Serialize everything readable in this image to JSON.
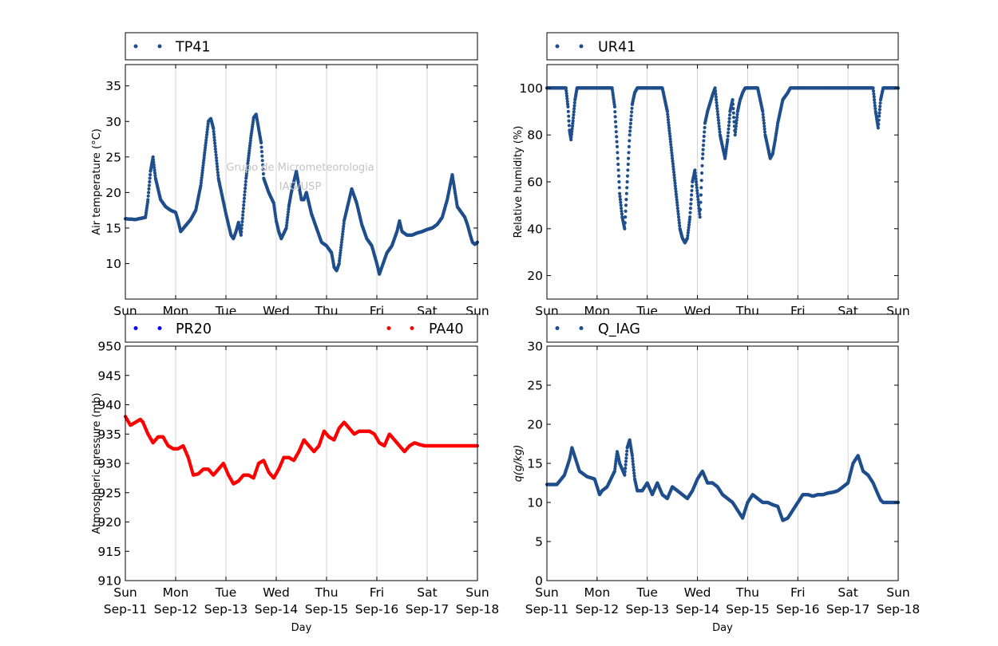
{
  "watermark": [
    "Grupo de Micrometeorologia",
    "IAG/USP"
  ],
  "chart_data": [
    {
      "type": "scatter",
      "xlabel": "Day",
      "ylabel": "Air temperature (°C)",
      "ylim": [
        5,
        38
      ],
      "yticks": [
        10,
        15,
        20,
        25,
        30,
        35
      ],
      "xlim_days": [
        0,
        7
      ],
      "x_tick_labels": [
        [
          "Sun",
          "Sep-11"
        ],
        [
          "Mon",
          "Sep-12"
        ],
        [
          "Tue",
          "Sep-13"
        ],
        [
          "Wed",
          "Sep-14"
        ],
        [
          "Thu",
          "Sep-15"
        ],
        [
          "Fri",
          "Sep-16"
        ],
        [
          "Sat",
          "Sep-17"
        ],
        [
          "Sun",
          "Sep-18"
        ]
      ],
      "grid": "vertical",
      "legend": "top",
      "series": [
        {
          "name": "TP41",
          "color": "#1f4e8c",
          "x": [
            0,
            0.2,
            0.4,
            0.45,
            0.5,
            0.55,
            0.6,
            0.7,
            0.8,
            0.9,
            1,
            1.05,
            1.1,
            1.3,
            1.4,
            1.5,
            1.6,
            1.65,
            1.7,
            1.75,
            1.85,
            2,
            2.05,
            2.1,
            2.15,
            2.2,
            2.25,
            2.3,
            2.4,
            2.5,
            2.55,
            2.6,
            2.65,
            2.7,
            2.75,
            2.85,
            2.95,
            3,
            3.05,
            3.1,
            3.2,
            3.25,
            3.3,
            3.4,
            3.45,
            3.5,
            3.55,
            3.6,
            3.7,
            3.8,
            3.9,
            4,
            4.1,
            4.15,
            4.2,
            4.25,
            4.3,
            4.35,
            4.4,
            4.5,
            4.6,
            4.7,
            4.8,
            4.9,
            5,
            5.05,
            5.1,
            5.2,
            5.3,
            5.4,
            5.45,
            5.5,
            5.6,
            5.7,
            5.8,
            5.9,
            6,
            6.1,
            6.2,
            6.3,
            6.4,
            6.5,
            6.6,
            6.7,
            6.75,
            6.8,
            6.85,
            6.9,
            6.95,
            7
          ],
          "y": [
            16.3,
            16.2,
            16.5,
            19,
            23,
            25,
            22,
            19,
            18,
            17.5,
            17.2,
            16,
            14.5,
            16.2,
            17.5,
            21,
            27,
            30,
            30.4,
            29,
            22,
            17,
            15.5,
            14,
            13.5,
            14.5,
            15.8,
            14,
            22,
            28,
            30.5,
            31,
            29,
            27,
            22,
            20,
            18.5,
            16,
            14.5,
            13.5,
            15,
            18,
            20,
            23,
            21,
            19,
            19,
            20,
            17,
            15,
            13,
            12.5,
            11.5,
            9.5,
            9,
            10,
            13,
            16,
            17.5,
            20.5,
            18.5,
            15.5,
            13.5,
            12.5,
            10,
            8.5,
            9.5,
            11.5,
            12.5,
            14.5,
            16,
            14.5,
            14,
            14,
            14.3,
            14.5,
            14.8,
            15,
            15.5,
            16.5,
            19,
            22.5,
            18,
            17,
            16.5,
            15.5,
            14.2,
            13,
            12.7,
            13
          ]
        }
      ]
    },
    {
      "type": "scatter",
      "xlabel": "Day",
      "ylabel": "Relative humidity (%)",
      "ylim": [
        10,
        110
      ],
      "yticks": [
        20,
        40,
        60,
        80,
        100
      ],
      "xlim_days": [
        0,
        7
      ],
      "x_tick_labels": [
        [
          "Sun",
          "Sep-11"
        ],
        [
          "Mon",
          "Sep-12"
        ],
        [
          "Tue",
          "Sep-13"
        ],
        [
          "Wed",
          "Sep-14"
        ],
        [
          "Thu",
          "Sep-15"
        ],
        [
          "Fri",
          "Sep-16"
        ],
        [
          "Sat",
          "Sep-17"
        ],
        [
          "Sun",
          "Sep-18"
        ]
      ],
      "grid": "vertical",
      "legend": "top",
      "series": [
        {
          "name": "UR41",
          "color": "#1f4e8c",
          "x": [
            0,
            0.2,
            0.38,
            0.42,
            0.45,
            0.48,
            0.52,
            0.56,
            0.6,
            0.8,
            1,
            1.3,
            1.35,
            1.4,
            1.45,
            1.5,
            1.55,
            1.6,
            1.65,
            1.7,
            1.75,
            1.8,
            1.9,
            2,
            2.3,
            2.4,
            2.5,
            2.6,
            2.65,
            2.7,
            2.75,
            2.8,
            2.85,
            2.9,
            2.95,
            3,
            3.05,
            3.1,
            3.15,
            3.2,
            3.3,
            3.35,
            3.4,
            3.45,
            3.5,
            3.55,
            3.6,
            3.65,
            3.7,
            3.75,
            3.8,
            3.85,
            3.9,
            3.95,
            4,
            4.1,
            4.2,
            4.3,
            4.35,
            4.4,
            4.45,
            4.5,
            4.55,
            4.6,
            4.7,
            4.8,
            4.85,
            4.9,
            5,
            5.1,
            5.3,
            5.5,
            6,
            6.4,
            6.5,
            6.55,
            6.6,
            6.62,
            6.65,
            6.7,
            7
          ],
          "y": [
            100,
            100,
            100,
            92,
            82,
            78,
            86,
            95,
            100,
            100,
            100,
            100,
            92,
            75,
            55,
            45,
            40,
            60,
            80,
            93,
            98,
            100,
            100,
            100,
            100,
            90,
            70,
            50,
            40,
            36,
            34,
            36,
            45,
            60,
            65,
            55,
            45,
            70,
            85,
            90,
            97,
            100,
            90,
            80,
            75,
            70,
            78,
            90,
            95,
            80,
            90,
            95,
            98,
            100,
            100,
            100,
            100,
            90,
            80,
            75,
            70,
            72,
            78,
            85,
            95,
            98,
            100,
            100,
            100,
            100,
            100,
            100,
            100,
            100,
            100,
            90,
            83,
            88,
            95,
            100,
            100
          ]
        }
      ]
    },
    {
      "type": "scatter",
      "xlabel": "Day",
      "ylabel": "Atmospheric pressure (mb)",
      "ylim": [
        910,
        950
      ],
      "yticks": [
        910,
        915,
        920,
        925,
        930,
        935,
        940,
        945,
        950
      ],
      "xlim_days": [
        0,
        7
      ],
      "x_tick_labels": [
        [
          "Sun",
          "Sep-11"
        ],
        [
          "Mon",
          "Sep-12"
        ],
        [
          "Tue",
          "Sep-13"
        ],
        [
          "Wed",
          "Sep-14"
        ],
        [
          "Thu",
          "Sep-15"
        ],
        [
          "Fri",
          "Sep-16"
        ],
        [
          "Sat",
          "Sep-17"
        ],
        [
          "Sun",
          "Sep-18"
        ]
      ],
      "grid": "vertical",
      "legend": "top",
      "series": [
        {
          "name": "PR20",
          "color": "#0000ff",
          "x": [],
          "y": []
        },
        {
          "name": "PA40",
          "color": "#ff0000",
          "x": [
            0,
            0.1,
            0.2,
            0.3,
            0.35,
            0.45,
            0.55,
            0.65,
            0.75,
            0.85,
            0.95,
            1.05,
            1.15,
            1.25,
            1.35,
            1.45,
            1.55,
            1.65,
            1.75,
            1.85,
            1.95,
            2.05,
            2.15,
            2.25,
            2.35,
            2.45,
            2.55,
            2.65,
            2.75,
            2.85,
            2.95,
            3.05,
            3.15,
            3.25,
            3.35,
            3.45,
            3.55,
            3.65,
            3.75,
            3.85,
            3.95,
            4.05,
            4.15,
            4.25,
            4.35,
            4.45,
            4.55,
            4.65,
            4.75,
            4.85,
            4.95,
            5.05,
            5.15,
            5.25,
            5.35,
            5.45,
            5.55,
            5.65,
            5.75,
            5.85,
            5.95,
            6.05,
            6.15,
            6.25,
            6.35,
            6.45,
            6.55,
            6.65,
            6.75,
            6.85,
            6.95,
            7
          ],
          "y": [
            938,
            936.5,
            937,
            937.5,
            937,
            935,
            933.5,
            934.5,
            934.5,
            933,
            932.5,
            932.5,
            933,
            931,
            928,
            928.2,
            929,
            929,
            928,
            929,
            930,
            928,
            926.5,
            927,
            928,
            928,
            927.5,
            930,
            930.5,
            928.5,
            927.5,
            929,
            931,
            931,
            930.5,
            932,
            934,
            933,
            932,
            933,
            935.5,
            934.5,
            934,
            936,
            937,
            936,
            935,
            935.5,
            935.5,
            935.5,
            935,
            933.5,
            933,
            935,
            934,
            933,
            932,
            933,
            933.5,
            933.2,
            933,
            933,
            933,
            933,
            933,
            933,
            933,
            933,
            933,
            933,
            933,
            933
          ]
        }
      ]
    },
    {
      "type": "scatter",
      "xlabel": "Day",
      "ylabel": "q(g/kg)",
      "ylim": [
        0,
        30
      ],
      "yticks": [
        0,
        5,
        10,
        15,
        20,
        25,
        30
      ],
      "xlim_days": [
        0,
        7
      ],
      "x_tick_labels": [
        [
          "Sun",
          "Sep-11"
        ],
        [
          "Mon",
          "Sep-12"
        ],
        [
          "Tue",
          "Sep-13"
        ],
        [
          "Wed",
          "Sep-14"
        ],
        [
          "Thu",
          "Sep-15"
        ],
        [
          "Fri",
          "Sep-16"
        ],
        [
          "Sat",
          "Sep-17"
        ],
        [
          "Sun",
          "Sep-18"
        ]
      ],
      "grid": "vertical",
      "legend": "top",
      "series": [
        {
          "name": "Q_IAG",
          "color": "#1f4e8c",
          "x": [
            0,
            0.2,
            0.35,
            0.45,
            0.5,
            0.55,
            0.65,
            0.8,
            0.95,
            1,
            1.05,
            1.1,
            1.2,
            1.35,
            1.4,
            1.45,
            1.55,
            1.6,
            1.65,
            1.7,
            1.75,
            1.8,
            1.9,
            2,
            2.1,
            2.2,
            2.3,
            2.4,
            2.5,
            2.6,
            2.7,
            2.8,
            2.9,
            3,
            3.1,
            3.2,
            3.3,
            3.4,
            3.5,
            3.6,
            3.7,
            3.8,
            3.9,
            4,
            4.1,
            4.2,
            4.3,
            4.4,
            4.5,
            4.6,
            4.7,
            4.8,
            4.9,
            5,
            5.05,
            5.1,
            5.2,
            5.3,
            5.4,
            5.5,
            5.6,
            5.7,
            5.8,
            5.9,
            6,
            6.1,
            6.2,
            6.3,
            6.4,
            6.5,
            6.6,
            6.65,
            6.7,
            6.8,
            6.9,
            7
          ],
          "y": [
            12.3,
            12.3,
            13.5,
            15.5,
            17,
            16,
            14,
            13.3,
            13,
            12,
            11,
            11.5,
            12,
            14,
            16.5,
            15,
            13.5,
            17,
            18,
            16,
            13,
            11.5,
            11.5,
            12.5,
            11,
            12.5,
            11,
            10.5,
            12,
            11.5,
            11,
            10.5,
            11.5,
            13,
            14,
            12.5,
            12.5,
            12,
            11,
            10.5,
            10,
            9,
            8,
            10,
            11,
            10.5,
            10,
            10,
            9.7,
            9.5,
            7.7,
            8,
            9,
            10,
            10.5,
            11,
            11,
            10.8,
            11,
            11,
            11.2,
            11.3,
            11.5,
            12,
            12.5,
            15,
            16,
            14,
            13.5,
            12.5,
            11,
            10.3,
            10,
            10,
            10,
            10
          ]
        }
      ]
    }
  ]
}
